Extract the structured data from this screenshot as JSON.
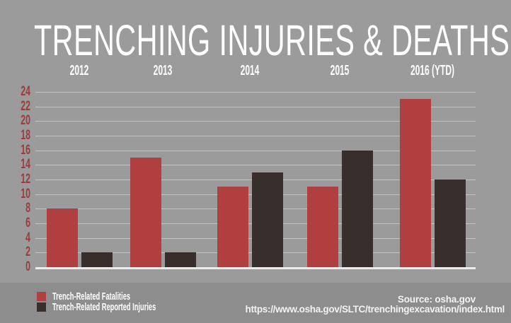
{
  "title": "TRENCHING INJURIES & DEATHS",
  "chart_data": {
    "type": "bar",
    "title": "TRENCHING INJURIES & DEATHS",
    "categories": [
      "2012",
      "2013",
      "2014",
      "2015",
      "2016 (YTD)"
    ],
    "series": [
      {
        "name": "Trench-Related Fatalities",
        "color": "#b23f3f",
        "values": [
          8,
          15,
          11,
          11,
          23
        ]
      },
      {
        "name": "Trench-Related Reported Injuries",
        "color": "#382e2c",
        "values": [
          2,
          2,
          13,
          16,
          12
        ]
      }
    ],
    "xlabel": "",
    "ylabel": "",
    "ylim": [
      0,
      24
    ],
    "ytick_step": 2,
    "grid": true,
    "legend_position": "bottom-left",
    "axis_label_color": "#9e3a3c"
  },
  "source": {
    "label": "Source: osha.gov",
    "url": "https://www.osha.gov/SLTC/trenchingexcavation/index.html"
  },
  "colors": {
    "background": "#9b9b9b",
    "footer_background": "#8d8d8d",
    "title_text": "#ffffff",
    "gridline": "#e9e9e9",
    "baseline": "#ececec",
    "fatalities_bar": "#b23f3f",
    "injuries_bar": "#382e2c",
    "ytick_text": "#9e3a3c"
  }
}
